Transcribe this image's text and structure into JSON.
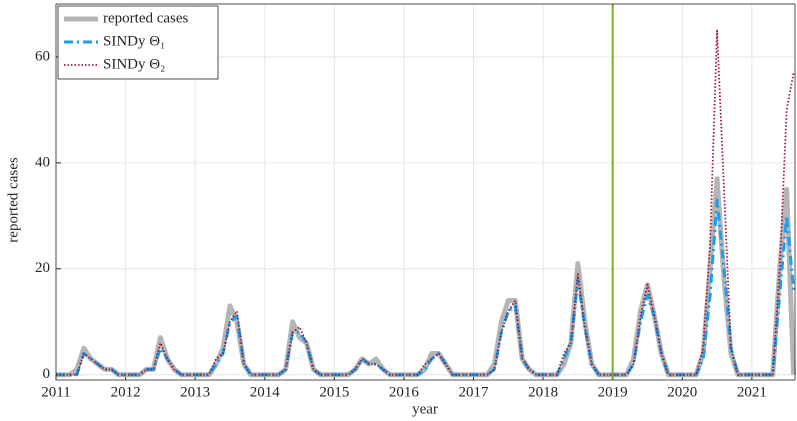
{
  "chart_data": {
    "type": "line",
    "x_label": "year",
    "y_label": "reported cases",
    "x": [
      2011.0,
      2011.1,
      2011.2,
      2011.3,
      2011.4,
      2011.5,
      2011.6,
      2011.7,
      2011.8,
      2011.9,
      2012.0,
      2012.1,
      2012.2,
      2012.3,
      2012.4,
      2012.5,
      2012.6,
      2012.7,
      2012.8,
      2012.9,
      2013.0,
      2013.1,
      2013.2,
      2013.3,
      2013.4,
      2013.5,
      2013.6,
      2013.7,
      2013.8,
      2013.9,
      2014.0,
      2014.1,
      2014.2,
      2014.3,
      2014.4,
      2014.5,
      2014.6,
      2014.7,
      2014.8,
      2014.9,
      2015.0,
      2015.1,
      2015.2,
      2015.3,
      2015.4,
      2015.5,
      2015.6,
      2015.7,
      2015.8,
      2015.9,
      2016.0,
      2016.1,
      2016.2,
      2016.3,
      2016.4,
      2016.5,
      2016.6,
      2016.7,
      2016.8,
      2016.9,
      2017.0,
      2017.1,
      2017.2,
      2017.3,
      2017.4,
      2017.5,
      2017.6,
      2017.7,
      2017.8,
      2017.9,
      2018.0,
      2018.1,
      2018.2,
      2018.3,
      2018.4,
      2018.5,
      2018.6,
      2018.7,
      2018.8,
      2018.9,
      2019.0,
      2019.1,
      2019.2,
      2019.3,
      2019.4,
      2019.5,
      2019.6,
      2019.7,
      2019.8,
      2019.9,
      2020.0,
      2020.1,
      2020.2,
      2020.3,
      2020.4,
      2020.5,
      2020.6,
      2020.7,
      2020.8,
      2020.9,
      2021.0,
      2021.1,
      2021.2,
      2021.3,
      2021.4,
      2021.5,
      2021.6
    ],
    "series": [
      {
        "name": "reported cases",
        "color": "#b5b5b5",
        "width": 5,
        "dash": "none",
        "values": [
          0,
          0,
          0,
          1,
          5,
          3,
          2,
          1,
          1,
          0,
          0,
          0,
          0,
          1,
          1,
          7,
          3,
          1,
          0,
          0,
          0,
          0,
          0,
          2,
          5,
          13,
          10,
          2,
          0,
          0,
          0,
          0,
          0,
          1,
          10,
          7,
          6,
          1,
          0,
          0,
          0,
          0,
          0,
          1,
          3,
          2,
          3,
          1,
          0,
          0,
          0,
          0,
          0,
          1,
          4,
          4,
          2,
          0,
          0,
          0,
          0,
          0,
          0,
          2,
          10,
          14,
          14,
          3,
          1,
          0,
          0,
          0,
          0,
          2,
          6,
          21,
          10,
          2,
          0,
          0,
          0,
          0,
          0,
          3,
          12,
          17,
          11,
          4,
          0,
          0,
          0,
          0,
          0,
          4,
          20,
          37,
          18,
          4,
          0,
          0,
          0,
          0,
          0,
          0,
          20,
          35,
          0
        ]
      },
      {
        "name": "SINDy Θ₁",
        "color": "#1a9fef",
        "width": 3,
        "dash": "9 4 2 4",
        "values": [
          0,
          0,
          0,
          0,
          4,
          3,
          2,
          1,
          1,
          0,
          0,
          0,
          0,
          1,
          1,
          5,
          3,
          1,
          0,
          0,
          0,
          0,
          0,
          2,
          4,
          10,
          11,
          2,
          0,
          0,
          0,
          0,
          0,
          1,
          8,
          8,
          6,
          1,
          0,
          0,
          0,
          0,
          0,
          1,
          3,
          2,
          2,
          1,
          0,
          0,
          0,
          0,
          0,
          1,
          3,
          4,
          2,
          0,
          0,
          0,
          0,
          0,
          0,
          1,
          8,
          12,
          13,
          3,
          1,
          0,
          0,
          0,
          0,
          3,
          6,
          18,
          9,
          2,
          0,
          0,
          0,
          0,
          0,
          2,
          10,
          15,
          11,
          4,
          0,
          0,
          0,
          0,
          0,
          3,
          15,
          33,
          20,
          5,
          0,
          0,
          0,
          0,
          0,
          0,
          15,
          30,
          16
        ]
      },
      {
        "name": "SINDy Θ₂",
        "color": "#a2142f",
        "width": 1.8,
        "dash": "1.5 2",
        "values": [
          0,
          0,
          0,
          0,
          4,
          3,
          2,
          1,
          1,
          0,
          0,
          0,
          0,
          1,
          1,
          6,
          3,
          1,
          0,
          0,
          0,
          0,
          0,
          3,
          4,
          10,
          12,
          2,
          0,
          0,
          0,
          0,
          0,
          1,
          8,
          9,
          6,
          1,
          0,
          0,
          0,
          0,
          0,
          1,
          3,
          2,
          2,
          1,
          0,
          0,
          0,
          0,
          0,
          2,
          3,
          4,
          2,
          0,
          0,
          0,
          0,
          0,
          0,
          1,
          8,
          12,
          14,
          3,
          1,
          0,
          0,
          0,
          0,
          4,
          6,
          19,
          9,
          2,
          0,
          0,
          0,
          0,
          0,
          2,
          11,
          17,
          11,
          4,
          0,
          0,
          0,
          0,
          0,
          5,
          25,
          65,
          35,
          5,
          0,
          0,
          0,
          0,
          0,
          0,
          20,
          50,
          57
        ]
      }
    ],
    "vline": 2019,
    "vline_color": "#77ac30",
    "xlim": [
      2011,
      2021.62
    ],
    "ylim": [
      -1,
      70
    ],
    "xticks": [
      2011,
      2012,
      2013,
      2014,
      2015,
      2016,
      2017,
      2018,
      2019,
      2020,
      2021
    ],
    "yticks": [
      0,
      20,
      40,
      60
    ],
    "grid": true,
    "legend": "top-left"
  }
}
